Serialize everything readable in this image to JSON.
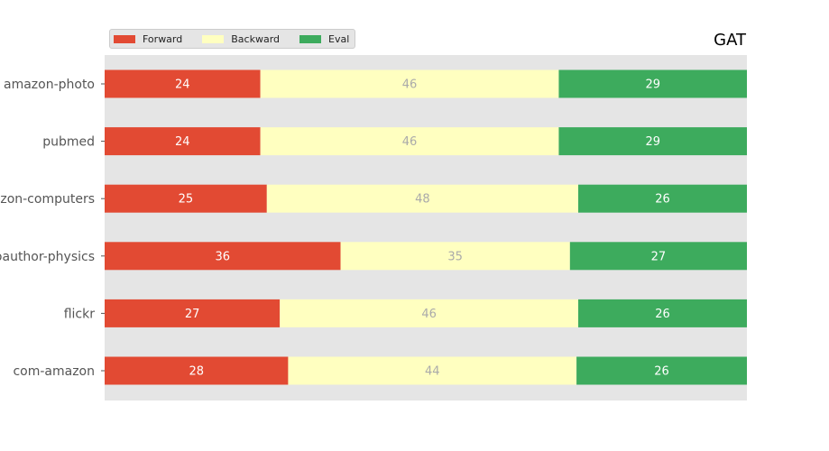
{
  "chart_data": {
    "type": "bar",
    "orientation": "horizontal",
    "stacked": true,
    "normalized": "percent",
    "title": "GAT",
    "xlabel": "",
    "ylabel": "",
    "xlim": [
      0,
      100
    ],
    "grid": false,
    "legend_position": "top-left",
    "categories": [
      "amazon-photo",
      "pubmed",
      "amazon-computers",
      "coauthor-physics",
      "flickr",
      "com-amazon"
    ],
    "visible_tick_labels": [
      "amazon-photo",
      "pubmed",
      "azon-computers",
      "oauthor-physics",
      "flickr",
      "com-amazon"
    ],
    "series": [
      {
        "name": "Forward",
        "color": "#e24a33",
        "label_color": "#ffffff",
        "values": [
          24,
          24,
          25,
          36,
          27,
          28
        ]
      },
      {
        "name": "Backward",
        "color": "#ffffc0",
        "label_color": "#aaaaaa",
        "values": [
          46,
          46,
          48,
          35,
          46,
          44
        ]
      },
      {
        "name": "Eval",
        "color": "#3dab5d",
        "label_color": "#ffffff",
        "values": [
          29,
          29,
          26,
          27,
          26,
          26
        ]
      }
    ]
  },
  "colors": {
    "plot_background": "#e5e5e5",
    "tick_label": "#555555"
  }
}
